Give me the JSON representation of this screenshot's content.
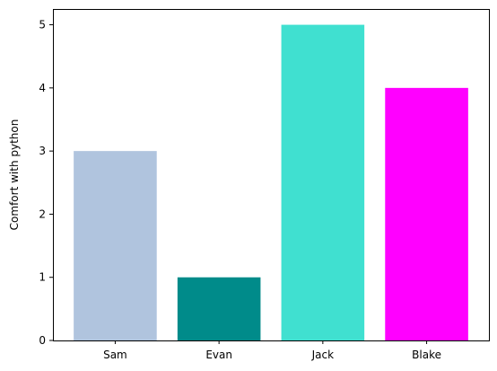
{
  "chart_data": {
    "type": "bar",
    "title": "",
    "xlabel": "",
    "ylabel": "Comfort with python",
    "categories": [
      "Sam",
      "Evan",
      "Jack",
      "Blake"
    ],
    "values": [
      3,
      1,
      5,
      4
    ],
    "colors": [
      "#b0c4de",
      "#008b8a",
      "#40e0d0",
      "#ff00ff"
    ],
    "ylim": [
      0,
      5.25
    ],
    "yticks": [
      0,
      1,
      2,
      3,
      4,
      5
    ],
    "grid": false,
    "legend": "none"
  }
}
